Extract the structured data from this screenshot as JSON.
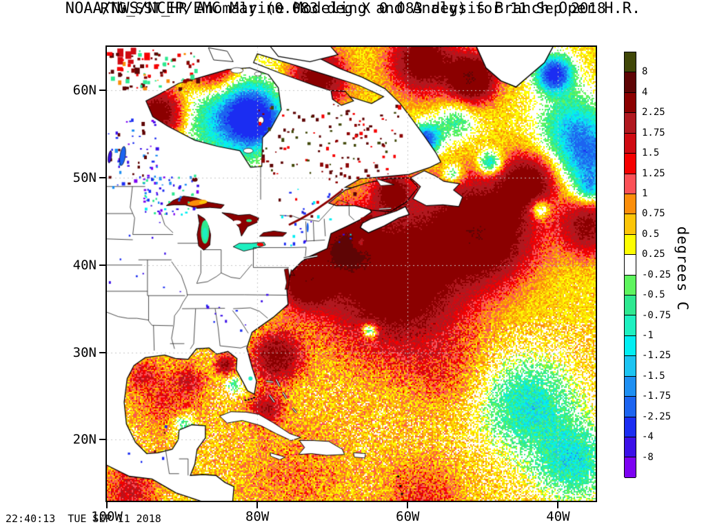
{
  "header": {
    "line1": "NOAA/NWS/NCEP/EMC Marine Modeling and Analysis Branch Oper H.R.",
    "line2": "RTG_SST_HR Anomaly (0.083 deg X 0.083 deg) for 11 Sep 2018"
  },
  "footer": {
    "timestamp": "22:40:13  TUE SEP 11 2018"
  },
  "colorbar": {
    "unit_label": "degrees C",
    "tick_labels": [
      "8",
      "4",
      "2.25",
      "1.75",
      "1.5",
      "1.25",
      "1",
      "0.75",
      "0.5",
      "0.25",
      "-0.25",
      "-0.5",
      "-0.75",
      "-1",
      "-1.25",
      "-1.5",
      "-1.75",
      "-2.25",
      "-4",
      "-8"
    ],
    "colors_top_to_bottom": [
      "#404708",
      "#5e0505",
      "#8b0000",
      "#b0181f",
      "#cf0a12",
      "#f50000",
      "#fb5157",
      "#fb8e0a",
      "#fcc508",
      "#fdfd02",
      "#ffffff",
      "#5ef45e",
      "#2ee890",
      "#1ef0c0",
      "#02eef2",
      "#1cc4f2",
      "#1e8ff2",
      "#1c64f0",
      "#1b2df2",
      "#3c10e8",
      "#7d02f2"
    ]
  },
  "axes": {
    "lat_ticks": [
      {
        "label": "60N",
        "deg": 60
      },
      {
        "label": "50N",
        "deg": 50
      },
      {
        "label": "40N",
        "deg": 40
      },
      {
        "label": "30N",
        "deg": 30
      },
      {
        "label": "20N",
        "deg": 20
      }
    ],
    "lon_ticks": [
      {
        "label": "100W",
        "deg": -100
      },
      {
        "label": "80W",
        "deg": -80
      },
      {
        "label": "60W",
        "deg": -60
      },
      {
        "label": "40W",
        "deg": -40
      }
    ]
  },
  "chart_data": {
    "type": "heatmap",
    "title": "RTG_SST_HR Anomaly (0.083 deg X 0.083 deg) for 11 Sep 2018",
    "subtitle": "NOAA/NWS/NCEP/EMC Marine Modeling and Analysis Branch Oper H.R.",
    "units": "degrees C",
    "lon_range_deg_west": [
      100,
      35
    ],
    "lat_range_deg_north": [
      13,
      65
    ],
    "gridline_lats_deg": [
      20,
      30,
      40,
      50,
      60
    ],
    "gridline_lons_deg_west": [
      80,
      60,
      40
    ],
    "grid": "dotted",
    "legend_position": "right",
    "scale_boundaries": [
      -8,
      -4,
      -2.25,
      -1.75,
      -1.5,
      -1.25,
      -1,
      -0.75,
      -0.5,
      -0.25,
      0.25,
      0.5,
      0.75,
      1,
      1.25,
      1.5,
      1.75,
      2.25,
      4,
      8
    ],
    "base_anomaly_c": 0.5,
    "features": [
      {
        "name": "hudson-bay-cold-core",
        "lon": -80.5,
        "lat": 56.8,
        "radius_deg": 3.6,
        "peak_anomaly_c": -2.8
      },
      {
        "name": "hudson-bay-cool",
        "lon": -84,
        "lat": 57.5,
        "radius_deg": 6.5,
        "peak_anomaly_c": -1.8
      },
      {
        "name": "hudson-bay-west-warm-ring",
        "lon": -93,
        "lat": 57.5,
        "radius_deg": 3.2,
        "peak_anomaly_c": 2.6
      },
      {
        "name": "foxe-basin-warm",
        "lon": -86,
        "lat": 62.5,
        "radius_deg": 3.5,
        "peak_anomaly_c": 2.2
      },
      {
        "name": "arctic-corner-warm",
        "lon": -99,
        "lat": 64,
        "radius_deg": 2.2,
        "peak_anomaly_c": 2.6
      },
      {
        "name": "hudson-strait-warm",
        "lon": -72,
        "lat": 61.5,
        "radius_deg": 3.5,
        "peak_anomaly_c": 2.4
      },
      {
        "name": "davis-strait-warm",
        "lon": -58,
        "lat": 63.5,
        "radius_deg": 4,
        "peak_anomaly_c": 2.6
      },
      {
        "name": "west-greenland-warm",
        "lon": -51.5,
        "lat": 61.5,
        "radius_deg": 3,
        "peak_anomaly_c": 3.4
      },
      {
        "name": "east-greenland-cold",
        "lon": -40.5,
        "lat": 62,
        "radius_deg": 2.4,
        "peak_anomaly_c": -3.2
      },
      {
        "name": "irminger-cool",
        "lon": -38,
        "lat": 56,
        "radius_deg": 4.5,
        "peak_anomaly_c": -1.7
      },
      {
        "name": "subpolar-cool-east",
        "lon": -35.5,
        "lat": 52,
        "radius_deg": 4,
        "peak_anomaly_c": -1.9
      },
      {
        "name": "labrador-coast-cold",
        "lon": -57.5,
        "lat": 54.5,
        "radius_deg": 2,
        "peak_anomaly_c": -2.6
      },
      {
        "name": "labrador-sea-cool",
        "lon": -53.5,
        "lat": 56.5,
        "radius_deg": 2.6,
        "peak_anomaly_c": -1.1
      },
      {
        "name": "nfld-cyan-streak",
        "lon": -49,
        "lat": 51.8,
        "radius_deg": 1.6,
        "peak_anomaly_c": -2
      },
      {
        "name": "mid-atl-cold-streak",
        "lon": -42.5,
        "lat": 46.5,
        "radius_deg": 1.4,
        "peak_anomaly_c": -1.8
      },
      {
        "name": "east-edge-cool-pocket",
        "lon": -35.8,
        "lat": 48.8,
        "radius_deg": 1.8,
        "peak_anomaly_c": -1.4
      },
      {
        "name": "newfoundland-basin-warm",
        "lon": -50,
        "lat": 44,
        "radius_deg": 6.5,
        "peak_anomaly_c": 3
      },
      {
        "name": "gulf-stream-warm",
        "lon": -62,
        "lat": 38.5,
        "radius_deg": 9,
        "peak_anomaly_c": 2.9
      },
      {
        "name": "scotian-shelf-warm",
        "lon": -68.5,
        "lat": 42,
        "radius_deg": 3.5,
        "peak_anomaly_c": 3
      },
      {
        "name": "mid-atlantic-bight-warm",
        "lon": -73.5,
        "lat": 38,
        "radius_deg": 3.3,
        "peak_anomaly_c": 2.6
      },
      {
        "name": "north-atlantic-warm-lobe",
        "lon": -44,
        "lat": 49.5,
        "radius_deg": 3.5,
        "peak_anomaly_c": 2.4
      },
      {
        "name": "east-edge-warm",
        "lon": -36,
        "lat": 44.5,
        "radius_deg": 3.6,
        "peak_anomaly_c": 2
      },
      {
        "name": "scotia-cool-pocket",
        "lon": -66.3,
        "lat": 42.6,
        "radius_deg": 0.9,
        "peak_anomaly_c": -2.2
      },
      {
        "name": "sargasso-eddy",
        "lon": -65,
        "lat": 32.5,
        "radius_deg": 1,
        "peak_anomaly_c": -2.3
      },
      {
        "name": "subtropical-cool-west",
        "lon": -44,
        "lat": 24,
        "radius_deg": 6,
        "peak_anomaly_c": -1.5
      },
      {
        "name": "subtropical-cool-east",
        "lon": -38,
        "lat": 17.5,
        "radius_deg": 5,
        "peak_anomaly_c": -1.5
      },
      {
        "name": "sargasso-warm",
        "lon": -55,
        "lat": 28,
        "radius_deg": 5.5,
        "peak_anomaly_c": 0.5
      },
      {
        "name": "florida-current-warm",
        "lon": -77.5,
        "lat": 29.5,
        "radius_deg": 3.2,
        "peak_anomaly_c": 2.1
      },
      {
        "name": "bahamas-warm",
        "lon": -79,
        "lat": 23.5,
        "radius_deg": 2.2,
        "peak_anomaly_c": 1.4
      },
      {
        "name": "gulf-of-mexico-warm",
        "lon": -92,
        "lat": 25,
        "radius_deg": 4.8,
        "peak_anomaly_c": 0.75
      },
      {
        "name": "gom-west-spot",
        "lon": -95.5,
        "lat": 27.5,
        "radius_deg": 1.8,
        "peak_anomaly_c": 0.75
      },
      {
        "name": "gom-east-spot",
        "lon": -89,
        "lat": 26.8,
        "radius_deg": 1.8,
        "peak_anomaly_c": 0.65
      },
      {
        "name": "campeche-shelf-cool",
        "lon": -89.8,
        "lat": 21.8,
        "radius_deg": 1.4,
        "peak_anomaly_c": -1.3
      },
      {
        "name": "west-florida-shelf-cool",
        "lon": -83.2,
        "lat": 26.3,
        "radius_deg": 1.1,
        "peak_anomaly_c": -1.1
      },
      {
        "name": "loop-current-warm",
        "lon": -84.3,
        "lat": 28.6,
        "radius_deg": 1.3,
        "peak_anomaly_c": 1.8
      },
      {
        "name": "caribbean-warm",
        "lon": -75,
        "lat": 16,
        "radius_deg": 8,
        "peak_anomaly_c": 0.45
      },
      {
        "name": "pacific-warm",
        "lon": -97,
        "lat": 14,
        "radius_deg": 3.5,
        "peak_anomaly_c": 1.1
      },
      {
        "name": "gulf-st-lawrence-warm",
        "lon": -62,
        "lat": 48.5,
        "radius_deg": 2.2,
        "peak_anomaly_c": 2.2
      },
      {
        "name": "nfld-coast-cyan",
        "lon": -54,
        "lat": 50.5,
        "radius_deg": 1.3,
        "peak_anomaly_c": -1.4
      },
      {
        "name": "tropical-atlantic-warm",
        "lon": -58,
        "lat": 13.5,
        "radius_deg": 5,
        "peak_anomaly_c": 0.75
      }
    ]
  }
}
